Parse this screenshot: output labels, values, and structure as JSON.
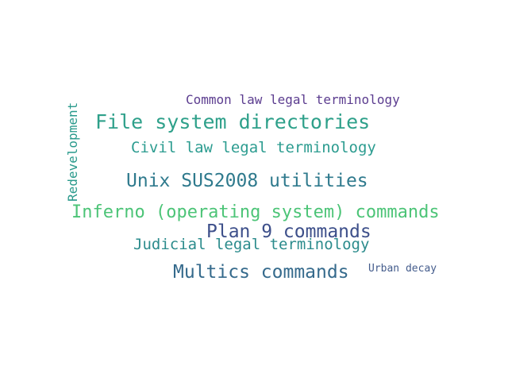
{
  "words": [
    {
      "text": "Common law legal terminology",
      "color": "#5b3c8f"
    },
    {
      "text": "File system directories",
      "color": "#2ea08a"
    },
    {
      "text": "Civil law legal terminology",
      "color": "#2c9c90"
    },
    {
      "text": "Unix SUS2008 utilities",
      "color": "#2f7a8d"
    },
    {
      "text": "Inferno (operating system) commands",
      "color": "#4cc477"
    },
    {
      "text": "Plan 9 commands",
      "color": "#3d4f8a"
    },
    {
      "text": "Judicial legal terminology",
      "color": "#2b8b8c"
    },
    {
      "text": "Multics commands",
      "color": "#356a8c"
    },
    {
      "text": "Urban decay",
      "color": "#445c8c"
    },
    {
      "text": "Redevelopment",
      "color": "#2a9a8c"
    }
  ]
}
